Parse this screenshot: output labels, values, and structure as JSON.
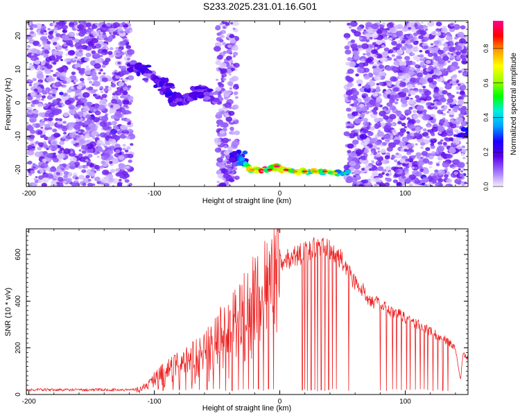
{
  "title": "S233.2025.231.01.16.G01",
  "chart_data": [
    {
      "type": "heatmap",
      "title": "S233.2025.231.01.16.G01",
      "xlabel": "Height of straight line (km)",
      "ylabel": "Frequency (Hz)",
      "xlim": [
        -202,
        150
      ],
      "ylim": [
        -25,
        24.5
      ],
      "xticks": [
        -200,
        -100,
        0,
        100
      ],
      "yticks": [
        -20,
        -10,
        0,
        10,
        20
      ],
      "colorbar": {
        "label": "Normalized spectral amplitude",
        "range": [
          0,
          0.96
        ],
        "ticks": [
          0.0,
          0.2,
          0.4,
          0.6,
          0.8
        ],
        "colormap": [
          "#f4edff",
          "#a070ff",
          "#5a00e6",
          "#1a00ff",
          "#00a0ff",
          "#00f0e0",
          "#00ff00",
          "#a0ff00",
          "#ffff00",
          "#ffa000",
          "#ff0000",
          "#ff0090"
        ]
      },
      "noise_regions": [
        {
          "x": [
            -200,
            -118
          ],
          "freq": [
            -25,
            24
          ],
          "level": 0.08
        },
        {
          "x": [
            -50,
            -34
          ],
          "freq": [
            -25,
            24
          ],
          "level": 0.08
        },
        {
          "x": [
            53,
            148
          ],
          "freq": [
            -25,
            24
          ],
          "level": 0.08
        }
      ],
      "signal_track": [
        {
          "height_km": -115,
          "freq_hz": 11,
          "amp": 0.2
        },
        {
          "height_km": -108,
          "freq_hz": 10,
          "amp": 0.25
        },
        {
          "height_km": -102,
          "freq_hz": 8,
          "amp": 0.15
        },
        {
          "height_km": -95,
          "freq_hz": 6,
          "amp": 0.25
        },
        {
          "height_km": -90,
          "freq_hz": 4,
          "amp": 0.2
        },
        {
          "height_km": -85,
          "freq_hz": 1.5,
          "amp": 0.25
        },
        {
          "height_km": -80,
          "freq_hz": 1,
          "amp": 0.2
        },
        {
          "height_km": -75,
          "freq_hz": 1,
          "amp": 0.25
        },
        {
          "height_km": -70,
          "freq_hz": 2,
          "amp": 0.2
        },
        {
          "height_km": -65,
          "freq_hz": 3.5,
          "amp": 0.25
        },
        {
          "height_km": -60,
          "freq_hz": 3,
          "amp": 0.2
        },
        {
          "height_km": -55,
          "freq_hz": 1.5,
          "amp": 0.15
        },
        {
          "height_km": -33,
          "freq_hz": -16,
          "amp": 0.3
        },
        {
          "height_km": -28,
          "freq_hz": -18,
          "amp": 0.45
        },
        {
          "height_km": -22,
          "freq_hz": -20,
          "amp": 0.7
        },
        {
          "height_km": -15,
          "freq_hz": -20,
          "amp": 0.85
        },
        {
          "height_km": -8,
          "freq_hz": -20,
          "amp": 0.8
        },
        {
          "height_km": -2,
          "freq_hz": -19,
          "amp": 0.85
        },
        {
          "height_km": 5,
          "freq_hz": -20,
          "amp": 0.8
        },
        {
          "height_km": 12,
          "freq_hz": -20.5,
          "amp": 0.7
        },
        {
          "height_km": 20,
          "freq_hz": -20.5,
          "amp": 0.75
        },
        {
          "height_km": 28,
          "freq_hz": -20.5,
          "amp": 0.7
        },
        {
          "height_km": 36,
          "freq_hz": -20.5,
          "amp": 0.75
        },
        {
          "height_km": 44,
          "freq_hz": -21,
          "amp": 0.65
        },
        {
          "height_km": 50,
          "freq_hz": -21,
          "amp": 0.5
        },
        {
          "height_km": 147,
          "freq_hz": -8.5,
          "amp": 0.3
        }
      ]
    },
    {
      "type": "line",
      "xlabel": "Height of straight line (km)",
      "ylabel": "SNR (10 * v/v)",
      "xlim": [
        -202,
        150
      ],
      "ylim": [
        0,
        710
      ],
      "xticks": [
        -200,
        -100,
        0,
        100
      ],
      "yticks": [
        0,
        200,
        400,
        600
      ],
      "series": [
        {
          "name": "SNR",
          "color": "#ee2222",
          "envelope": {
            "x": [
              -202,
              -150,
              -120,
              -112,
              -105,
              -100,
              -90,
              -80,
              -70,
              -60,
              -50,
              -40,
              -30,
              -20,
              -10,
              0,
              10,
              20,
              30,
              40,
              50,
              60,
              70,
              80,
              90,
              100,
              110,
              120,
              130,
              140,
              144,
              146,
              150
            ],
            "y": [
              20,
              20,
              20,
              25,
              45,
              75,
              110,
              140,
              170,
              210,
              260,
              330,
              380,
              450,
              520,
              560,
              590,
              610,
              630,
              620,
              570,
              480,
              420,
              380,
              350,
              330,
              300,
              270,
              240,
              200,
              60,
              180,
              160
            ]
          },
          "dropouts_x": [
            -110,
            -105,
            -97,
            -93,
            -85,
            -80,
            -75,
            -70,
            -64,
            -58,
            -53,
            -48,
            -43,
            -38,
            -33,
            -29,
            -25,
            -21,
            -17,
            -13,
            -9,
            -5,
            18,
            20,
            22,
            25,
            28,
            30,
            33,
            36,
            39,
            42,
            45,
            55,
            80,
            85,
            90,
            93,
            97,
            101,
            104,
            108,
            112,
            115,
            118,
            122,
            126,
            130,
            134
          ]
        }
      ]
    }
  ]
}
